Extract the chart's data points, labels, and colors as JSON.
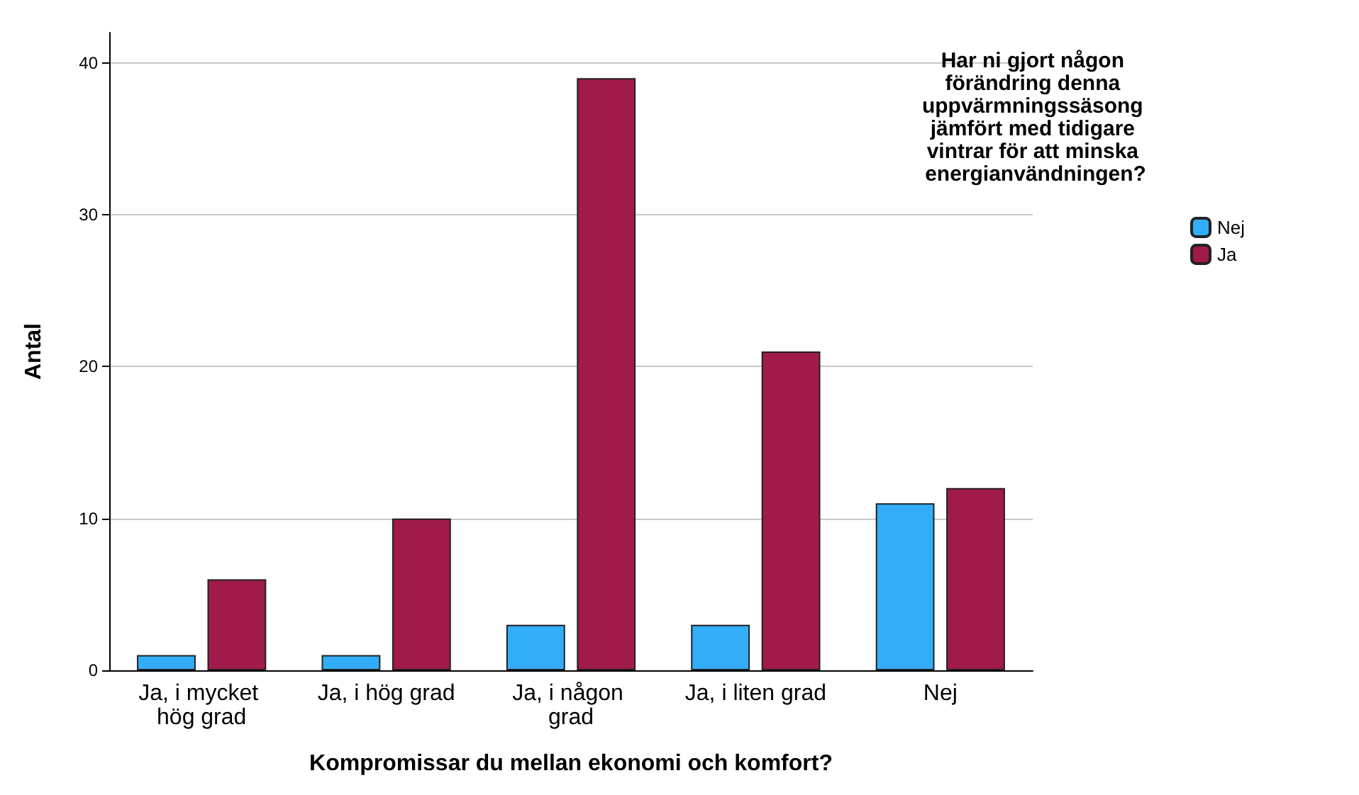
{
  "chart_data": {
    "type": "bar",
    "xlabel": "Kompromissar du mellan ekonomi och komfort?",
    "ylabel": "Antal",
    "legend_title": "Har ni gjort någon förändring denna uppvärmningssäsong jämfört med tidigare vintrar för att minska energianvändningen?",
    "categories": [
      "Ja, i mycket hög grad",
      "Ja, i hög grad",
      "Ja, i någon grad",
      "Ja, i liten grad",
      "Nej"
    ],
    "series": [
      {
        "name": "Nej",
        "color": "#33adf7",
        "values": [
          1,
          1,
          3,
          3,
          11
        ]
      },
      {
        "name": "Ja",
        "color": "#a01a4c",
        "values": [
          6,
          10,
          39,
          21,
          12
        ]
      }
    ],
    "ylim": [
      0,
      42
    ],
    "yticks": [
      0,
      10,
      20,
      30,
      40
    ],
    "grid": "y",
    "legend": "top right"
  }
}
